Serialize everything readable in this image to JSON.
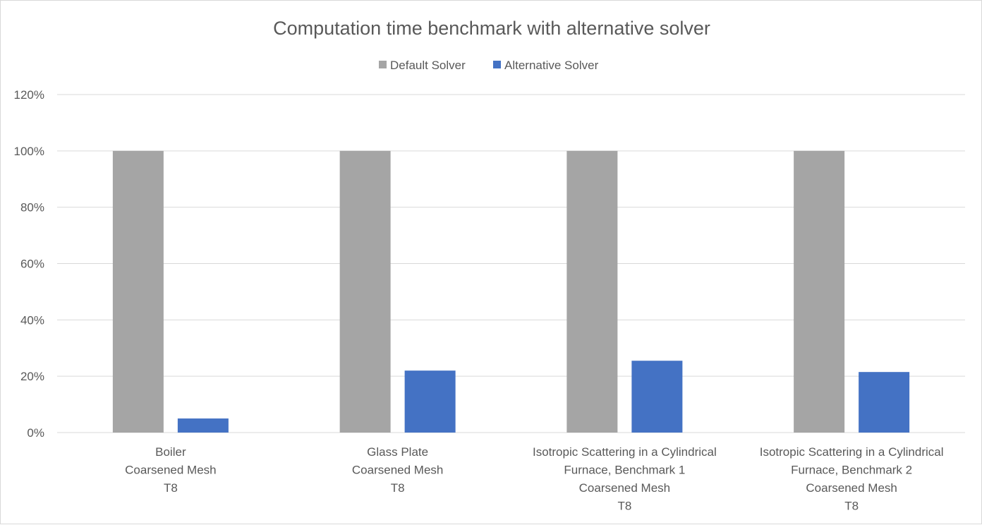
{
  "chart_data": {
    "type": "bar",
    "title": "Computation time benchmark with alternative solver",
    "xlabel": "",
    "ylabel": "",
    "ylim": [
      0,
      120
    ],
    "y_ticks": [
      "0%",
      "20%",
      "40%",
      "60%",
      "80%",
      "100%",
      "120%"
    ],
    "y_tick_values": [
      0,
      20,
      40,
      60,
      80,
      100,
      120
    ],
    "grid": true,
    "legend_position": "top",
    "categories": [
      [
        "Boiler",
        "Coarsened Mesh",
        "T8"
      ],
      [
        "Glass Plate",
        "Coarsened Mesh",
        "T8"
      ],
      [
        "Isotropic Scattering in a Cylindrical",
        "Furnace, Benchmark 1",
        "Coarsened Mesh",
        "T8"
      ],
      [
        "Isotropic Scattering in a Cylindrical",
        "Furnace, Benchmark 2",
        "Coarsened Mesh",
        "T8"
      ]
    ],
    "series": [
      {
        "name": "Default Solver",
        "color": "#a5a5a5",
        "values": [
          100,
          100,
          100,
          100
        ]
      },
      {
        "name": "Alternative Solver",
        "color": "#4472c4",
        "values": [
          5,
          22,
          25.5,
          21.5
        ]
      }
    ]
  }
}
